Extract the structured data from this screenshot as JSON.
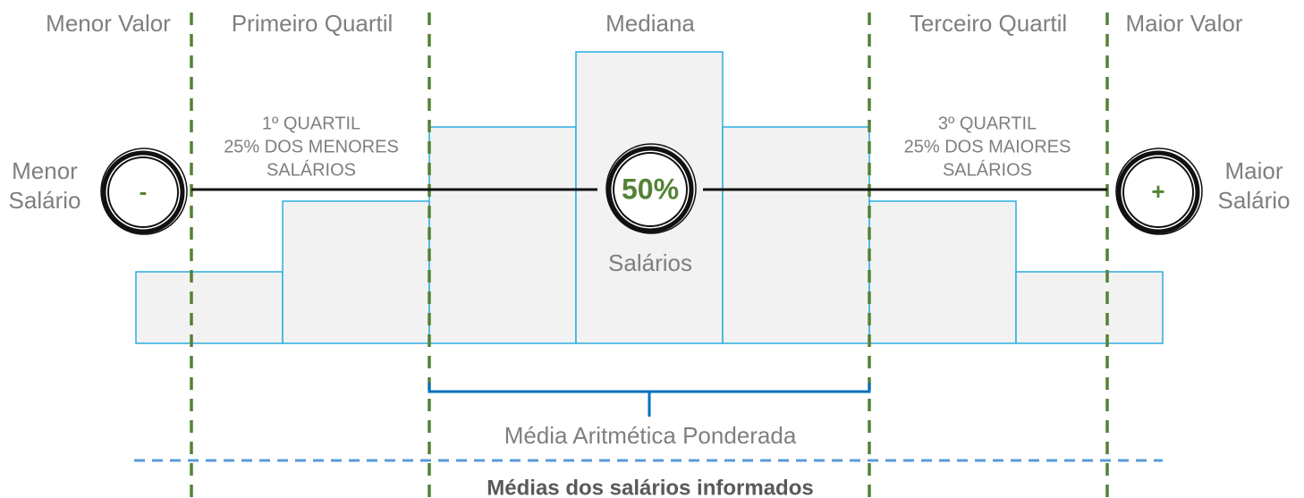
{
  "headers": [
    "Menor Valor",
    "Primeiro Quartil",
    "Mediana",
    "Terceiro Quartil",
    "Maior Valor"
  ],
  "left_note": [
    "1º QUARTIL",
    "25% DOS MENORES",
    "SALÁRIOS"
  ],
  "right_note": [
    "3º QUARTIL",
    "25% DOS MAIORES",
    "SALÁRIOS"
  ],
  "left_label": [
    "Menor",
    "Salário"
  ],
  "right_label": [
    "Maior",
    "Salário"
  ],
  "circles": {
    "min": "-",
    "median": "50%",
    "max": "+"
  },
  "median_caption": "Salários",
  "bracket_label": "Média Aritmética Ponderada",
  "footer": "Médias dos salários informados"
}
